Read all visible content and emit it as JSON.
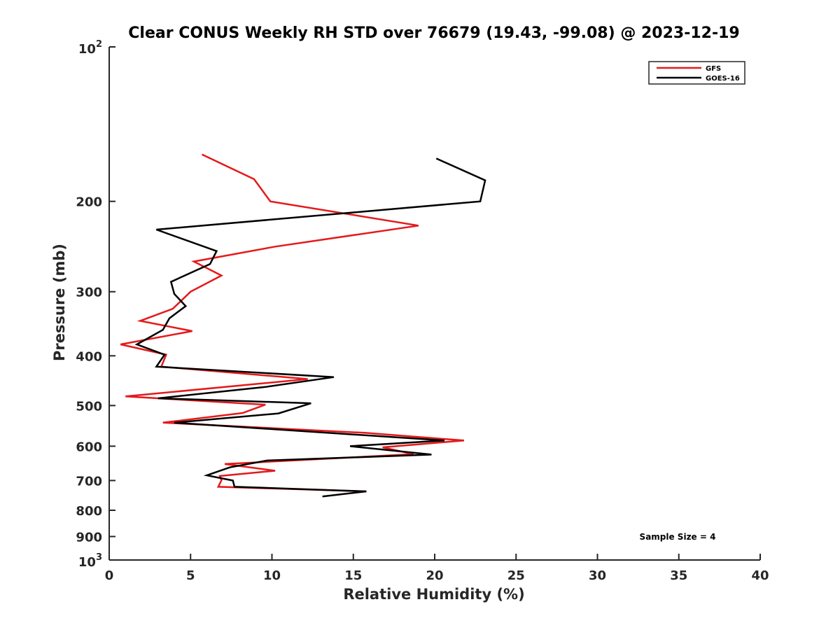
{
  "chart_data": {
    "type": "line",
    "title": "Clear CONUS Weekly RH STD over 76679 (19.43, -99.08) @ 2023-12-19",
    "xlabel": "Relative Humidity (%)",
    "ylabel": "Pressure (mb)",
    "xlim": [
      0,
      40
    ],
    "ylim": [
      100,
      1000
    ],
    "y_scale": "log",
    "y_reversed": true,
    "x_ticks": [
      {
        "value": 0,
        "label": "0"
      },
      {
        "value": 5,
        "label": "5"
      },
      {
        "value": 10,
        "label": "10"
      },
      {
        "value": 15,
        "label": "15"
      },
      {
        "value": 20,
        "label": "20"
      },
      {
        "value": 25,
        "label": "25"
      },
      {
        "value": 30,
        "label": "30"
      },
      {
        "value": 35,
        "label": "35"
      },
      {
        "value": 40,
        "label": "40"
      }
    ],
    "y_ticks": [
      {
        "value": 100,
        "base": "10",
        "exp": "2"
      },
      {
        "value": 200,
        "label": "200"
      },
      {
        "value": 300,
        "label": "300"
      },
      {
        "value": 400,
        "label": "400"
      },
      {
        "value": 500,
        "label": "500"
      },
      {
        "value": 600,
        "label": "600"
      },
      {
        "value": 700,
        "label": "700"
      },
      {
        "value": 800,
        "label": "800"
      },
      {
        "value": 900,
        "label": "900"
      },
      {
        "value": 1000,
        "base": "10",
        "exp": "3"
      }
    ],
    "grid": false,
    "legend_position": "top-right",
    "annotation": "Sample Size = 4",
    "series": [
      {
        "name": "GFS",
        "color": "#e41a1c",
        "points": [
          [
            5.7,
            162
          ],
          [
            8.9,
            181
          ],
          [
            9.9,
            200
          ],
          [
            19.0,
            223
          ],
          [
            10.2,
            245
          ],
          [
            5.2,
            262
          ],
          [
            6.9,
            279
          ],
          [
            5.0,
            300
          ],
          [
            3.9,
            324
          ],
          [
            1.9,
            342
          ],
          [
            5.1,
            358
          ],
          [
            0.7,
            380
          ],
          [
            3.5,
            398
          ],
          [
            3.2,
            420
          ],
          [
            12.2,
            444
          ],
          [
            1.0,
            480
          ],
          [
            9.6,
            498
          ],
          [
            8.2,
            517
          ],
          [
            3.3,
            540
          ],
          [
            15.7,
            565
          ],
          [
            21.8,
            585
          ],
          [
            16.8,
            603
          ],
          [
            18.7,
            622
          ],
          [
            7.1,
            650
          ],
          [
            10.2,
            670
          ],
          [
            6.8,
            686
          ],
          [
            6.9,
            699
          ],
          [
            6.7,
            720
          ],
          [
            15.8,
            735
          ]
        ]
      },
      {
        "name": "GOES-16",
        "color": "#000000",
        "points": [
          [
            20.1,
            165
          ],
          [
            23.1,
            182
          ],
          [
            22.8,
            200
          ],
          [
            2.9,
            227
          ],
          [
            6.6,
            250
          ],
          [
            6.2,
            265
          ],
          [
            3.8,
            287
          ],
          [
            4.0,
            303
          ],
          [
            4.7,
            320
          ],
          [
            3.7,
            338
          ],
          [
            3.3,
            356
          ],
          [
            1.7,
            380
          ],
          [
            3.4,
            398
          ],
          [
            2.9,
            420
          ],
          [
            13.8,
            440
          ],
          [
            9.6,
            460
          ],
          [
            3.0,
            484
          ],
          [
            12.4,
            495
          ],
          [
            10.4,
            518
          ],
          [
            4.0,
            540
          ],
          [
            20.6,
            585
          ],
          [
            14.8,
            600
          ],
          [
            19.8,
            623
          ],
          [
            9.7,
            640
          ],
          [
            7.4,
            660
          ],
          [
            6.0,
            684
          ],
          [
            7.6,
            700
          ],
          [
            7.7,
            720
          ],
          [
            15.8,
            735
          ],
          [
            13.1,
            752
          ]
        ]
      }
    ]
  }
}
